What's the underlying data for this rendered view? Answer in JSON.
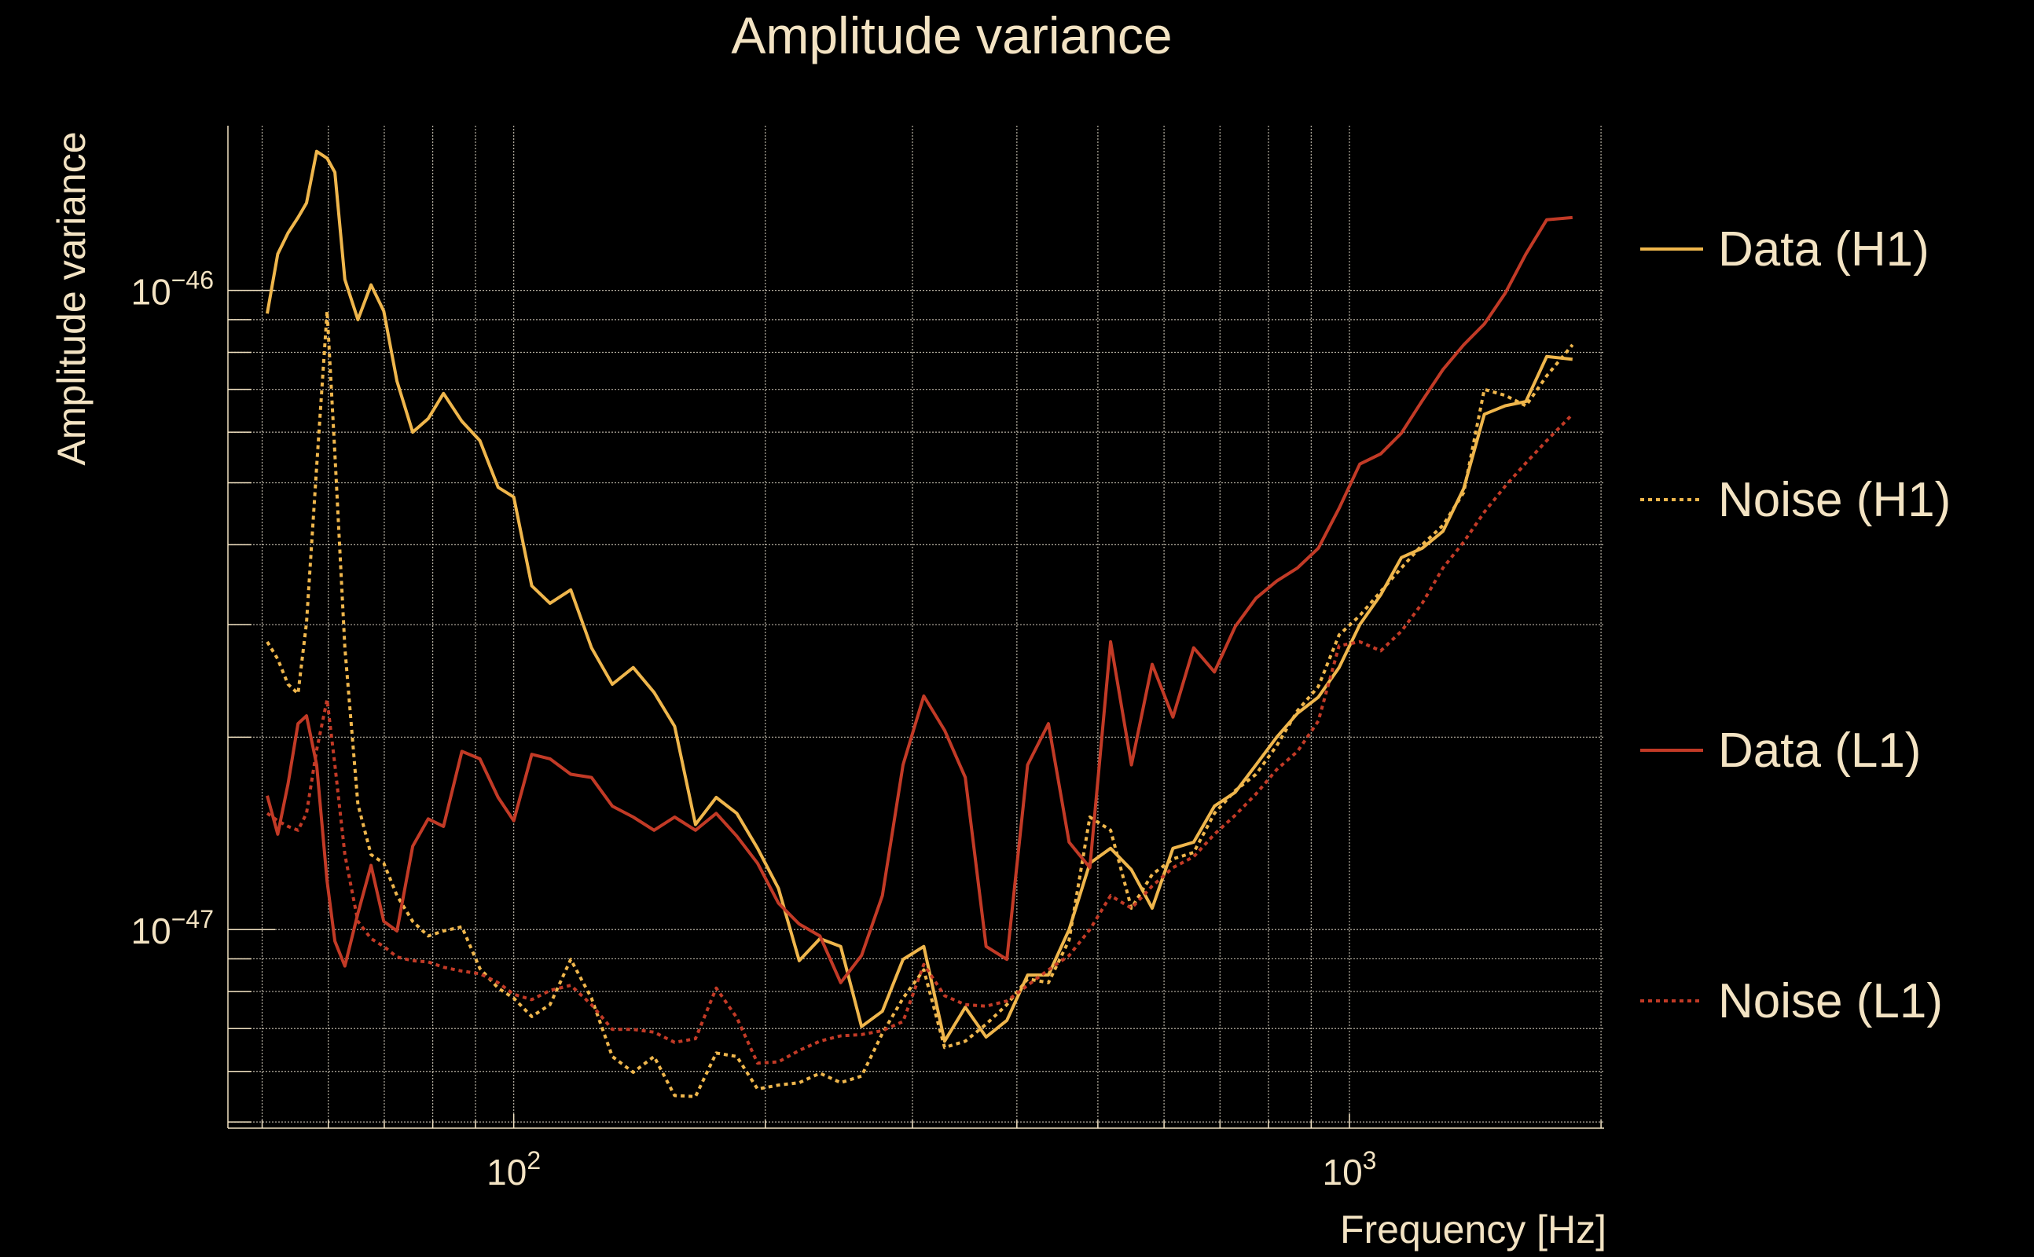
{
  "chart_data": {
    "type": "line",
    "title": "Amplitude variance",
    "xlabel": "Frequency [Hz]",
    "ylabel": "Amplitude variance",
    "xscale": "log",
    "yscale": "log",
    "xlim": [
      45.5,
      2017
    ],
    "ylim": [
      4.89e-48,
      1.81e-46
    ],
    "grid": true,
    "legend_position": "right-outside",
    "x_tick_labels": [
      {
        "value": 100,
        "base": "10",
        "exp": "2"
      },
      {
        "value": 1000,
        "base": "10",
        "exp": "3"
      }
    ],
    "y_tick_labels": [
      {
        "value": 1e-46,
        "base": "10",
        "exp": "−46"
      },
      {
        "value": 1e-47,
        "base": "10",
        "exp": "−47"
      }
    ],
    "y_value_unit": 1e-47,
    "x": [
      50.7,
      52.2,
      53.7,
      55.2,
      56.5,
      58.1,
      59.8,
      61.1,
      62.8,
      65.1,
      67.5,
      69.9,
      72.5,
      75.7,
      79.0,
      82.4,
      86.7,
      91.1,
      95.8,
      100,
      105.1,
      110.5,
      117.0,
      123.9,
      131.2,
      139.0,
      147.2,
      155.8,
      165.0,
      174.7,
      184.9,
      195.8,
      207.4,
      219.6,
      232.5,
      246.2,
      260.7,
      276.1,
      292.3,
      309.5,
      327.8,
      347.0,
      367.5,
      389.1,
      412.0,
      436.3,
      461.9,
      489.1,
      517.9,
      548.4,
      580.7,
      614.9,
      651.1,
      689.4,
      730.0,
      773.0,
      818.5,
      866.7,
      917.8,
      971.8,
      1029,
      1090,
      1154,
      1222,
      1294,
      1370,
      1450,
      1536,
      1626,
      1722,
      1849
    ],
    "series": [
      {
        "name": "Data (H1)",
        "color": "#efb64c",
        "style": "solid",
        "values": [
          9.2,
          11.4,
          12.3,
          13.0,
          13.7,
          16.5,
          16.1,
          15.3,
          10.4,
          9.0,
          10.2,
          9.28,
          7.21,
          6.0,
          6.3,
          6.9,
          6.24,
          5.82,
          4.92,
          4.75,
          3.45,
          3.24,
          3.4,
          2.76,
          2.42,
          2.57,
          2.35,
          2.08,
          1.46,
          1.61,
          1.52,
          1.34,
          1.16,
          0.894,
          0.968,
          0.941,
          0.705,
          0.745,
          0.898,
          0.941,
          0.669,
          0.756,
          0.679,
          0.721,
          0.849,
          0.849,
          1.0,
          1.27,
          1.34,
          1.24,
          1.08,
          1.34,
          1.37,
          1.56,
          1.64,
          1.81,
          2.0,
          2.18,
          2.31,
          2.57,
          3.0,
          3.34,
          3.82,
          3.95,
          4.2,
          4.9,
          6.4,
          6.6,
          6.7,
          7.88,
          7.8
        ]
      },
      {
        "name": "Noise (H1)",
        "color": "#efb64c",
        "style": "dotted",
        "values": [
          2.82,
          2.65,
          2.42,
          2.34,
          3.02,
          5.3,
          9.28,
          5.55,
          2.76,
          1.57,
          1.31,
          1.27,
          1.13,
          1.03,
          0.977,
          0.995,
          1.01,
          0.869,
          0.81,
          0.781,
          0.731,
          0.763,
          0.898,
          0.781,
          0.633,
          0.598,
          0.633,
          0.55,
          0.548,
          0.641,
          0.633,
          0.563,
          0.571,
          0.576,
          0.596,
          0.576,
          0.59,
          0.688,
          0.781,
          0.865,
          0.654,
          0.669,
          0.711,
          0.763,
          0.837,
          0.826,
          0.963,
          1.5,
          1.43,
          1.08,
          1.22,
          1.29,
          1.32,
          1.52,
          1.65,
          1.75,
          1.94,
          2.2,
          2.4,
          2.89,
          3.1,
          3.38,
          3.68,
          4.0,
          4.29,
          4.83,
          7.0,
          6.85,
          6.6,
          7.35,
          8.22
        ]
      },
      {
        "name": "Data (L1)",
        "color": "#c23a26",
        "style": "solid",
        "values": [
          1.62,
          1.41,
          1.69,
          2.1,
          2.16,
          1.81,
          1.19,
          0.959,
          0.877,
          1.06,
          1.26,
          1.03,
          0.995,
          1.35,
          1.49,
          1.45,
          1.9,
          1.85,
          1.61,
          1.48,
          1.88,
          1.85,
          1.75,
          1.73,
          1.56,
          1.5,
          1.43,
          1.5,
          1.43,
          1.52,
          1.4,
          1.27,
          1.1,
          1.02,
          0.977,
          0.826,
          0.911,
          1.13,
          1.81,
          2.32,
          2.05,
          1.73,
          0.941,
          0.898,
          1.81,
          2.1,
          1.37,
          1.25,
          2.82,
          1.81,
          2.6,
          2.15,
          2.76,
          2.53,
          2.98,
          3.3,
          3.51,
          3.68,
          3.95,
          4.56,
          5.35,
          5.55,
          5.98,
          6.72,
          7.52,
          8.22,
          8.86,
          9.9,
          11.4,
          12.9,
          13.0
        ]
      },
      {
        "name": "Noise (L1)",
        "color": "#c23a26",
        "style": "dotted",
        "values": [
          1.52,
          1.48,
          1.45,
          1.43,
          1.52,
          1.91,
          2.29,
          1.81,
          1.31,
          1.03,
          0.968,
          0.941,
          0.906,
          0.894,
          0.89,
          0.873,
          0.861,
          0.853,
          0.826,
          0.792,
          0.777,
          0.803,
          0.818,
          0.763,
          0.698,
          0.698,
          0.691,
          0.666,
          0.675,
          0.81,
          0.728,
          0.618,
          0.621,
          0.647,
          0.669,
          0.682,
          0.685,
          0.695,
          0.718,
          0.882,
          0.788,
          0.763,
          0.759,
          0.773,
          0.818,
          0.865,
          0.911,
          1.0,
          1.13,
          1.08,
          1.17,
          1.25,
          1.3,
          1.41,
          1.51,
          1.63,
          1.78,
          1.9,
          2.12,
          2.78,
          2.82,
          2.73,
          2.93,
          3.24,
          3.68,
          4.04,
          4.5,
          4.94,
          5.37,
          5.82,
          6.4
        ]
      }
    ]
  }
}
